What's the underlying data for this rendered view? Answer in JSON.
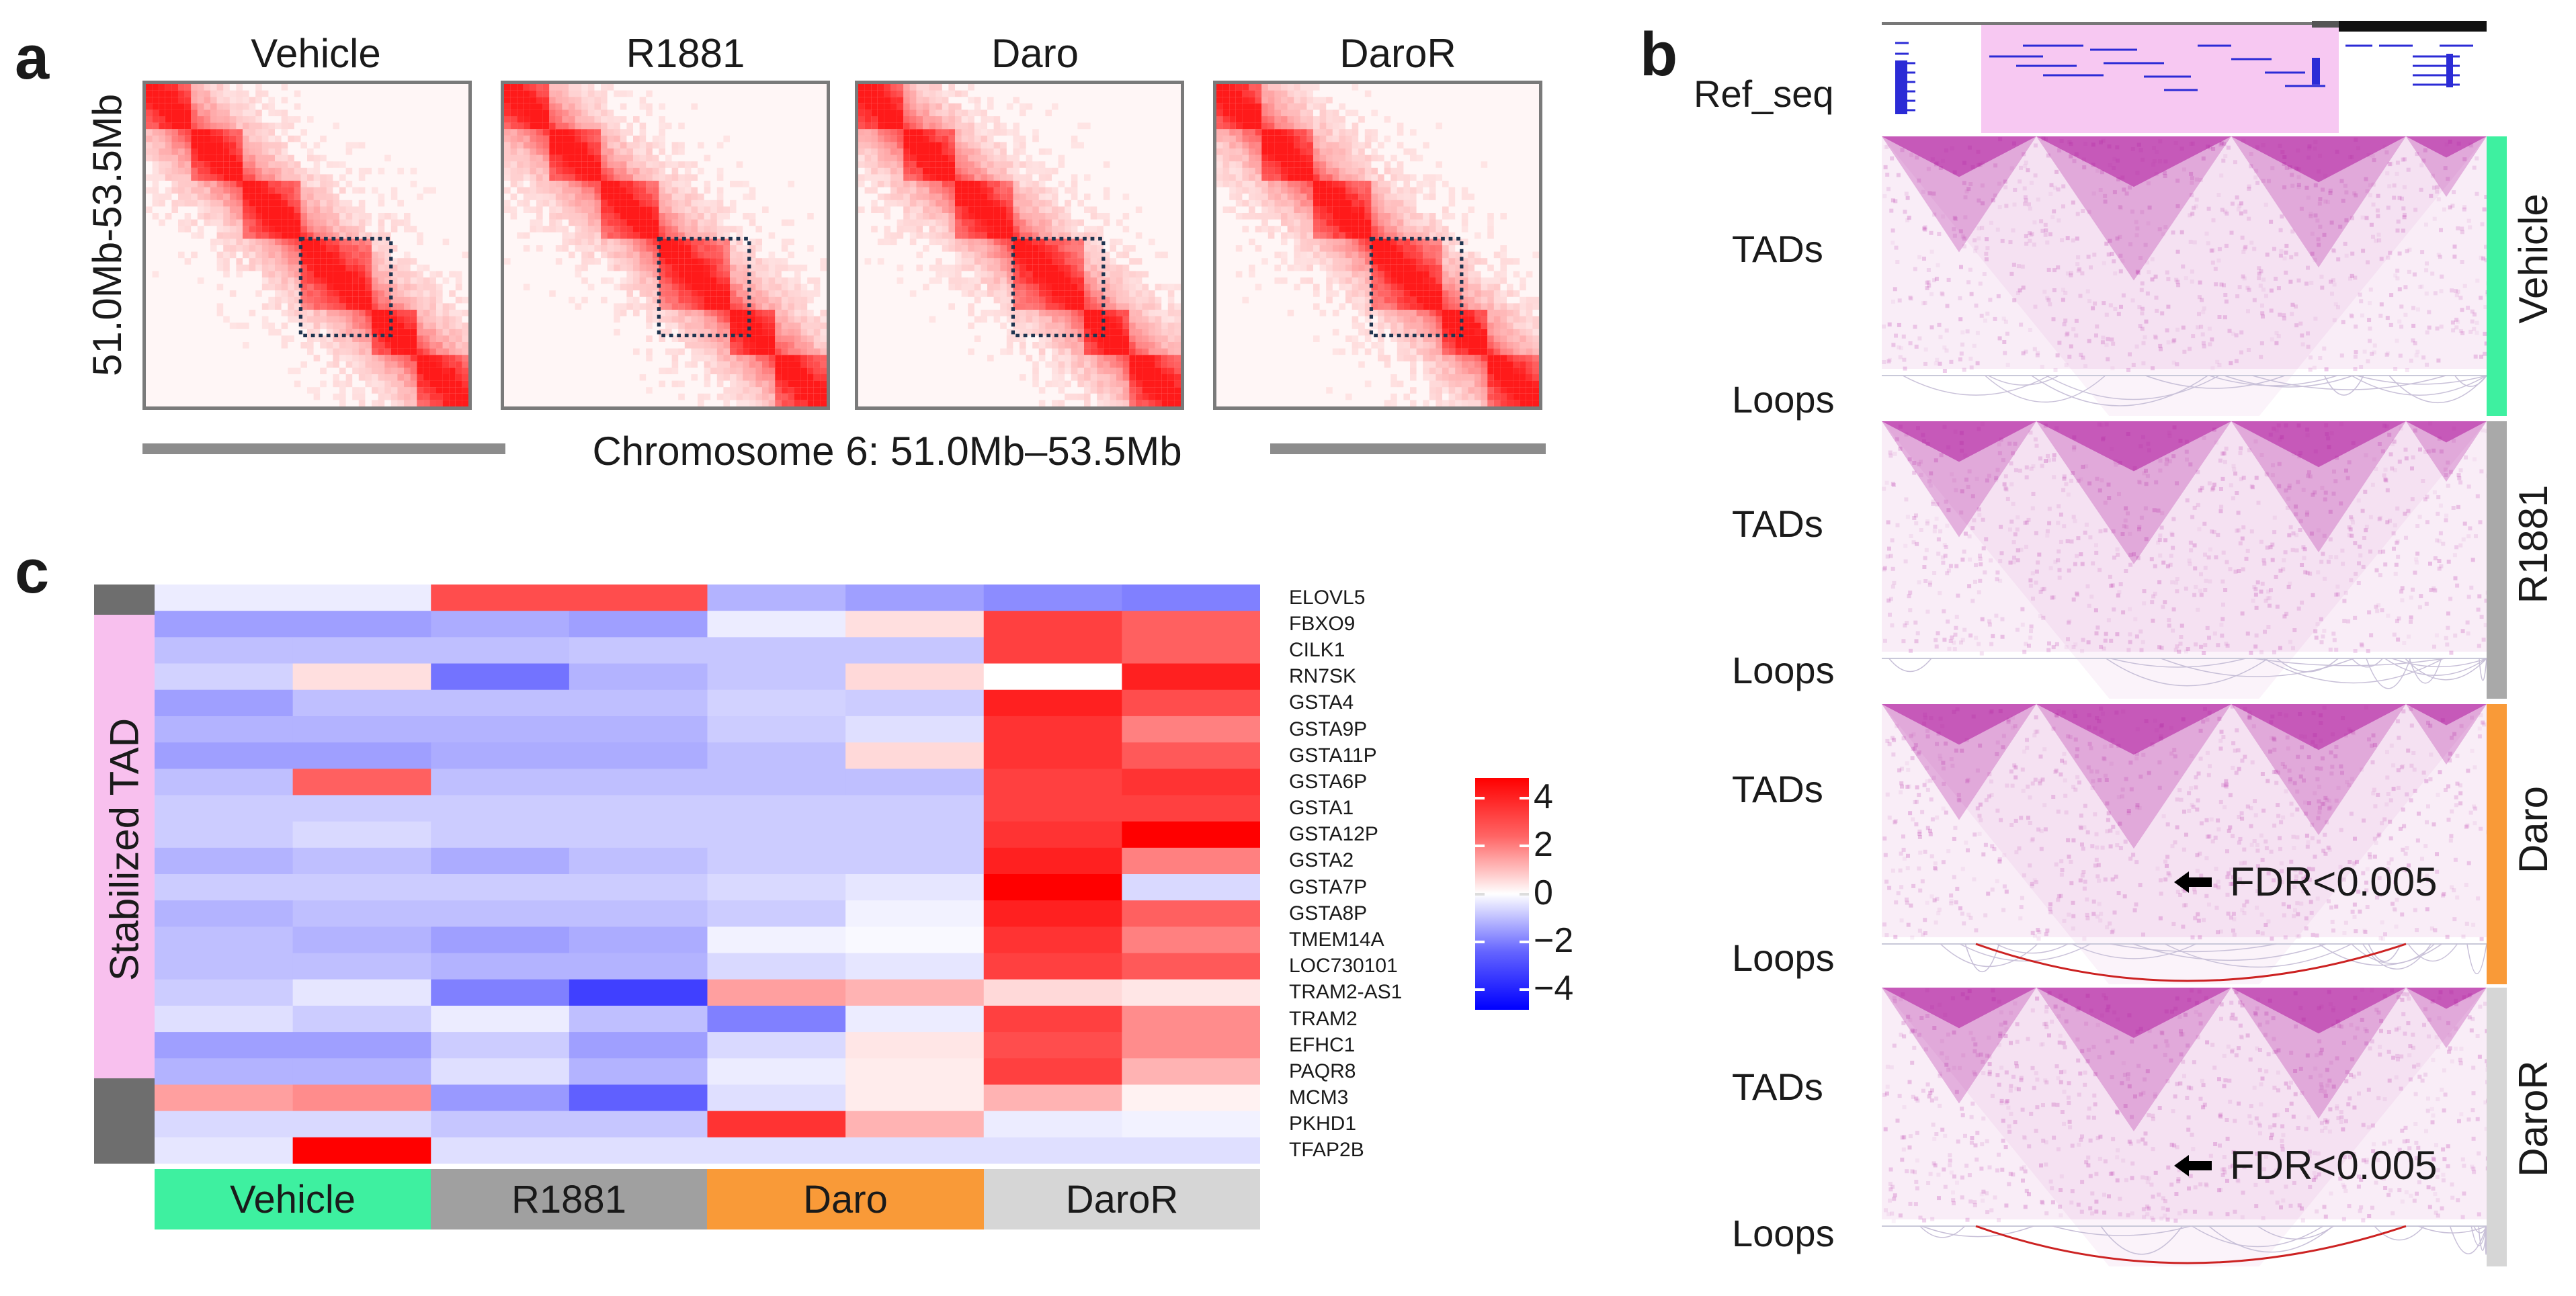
{
  "panel_a": {
    "letter": "a",
    "conditions": [
      "Vehicle",
      "R1881",
      "Daro",
      "DaroR"
    ],
    "y_axis_label": "51.0Mb-53.5Mb",
    "x_axis_label": "Chromosome 6: 51.0Mb–53.5Mb"
  },
  "panel_b": {
    "letter": "b",
    "ref_label": "Ref_seq",
    "tracks": [
      {
        "condition": "Vehicle",
        "color": "#3ef0a0",
        "tads_label": "TADs",
        "loops_label": "Loops",
        "fdr": ""
      },
      {
        "condition": "R1881",
        "color": "#a9a9a9",
        "tads_label": "TADs",
        "loops_label": "Loops",
        "fdr": ""
      },
      {
        "condition": "Daro",
        "color": "#f99a38",
        "tads_label": "TADs",
        "loops_label": "Loops",
        "fdr": "FDR<0.005"
      },
      {
        "condition": "DaroR",
        "color": "#d6d6d6",
        "tads_label": "TADs",
        "loops_label": "Loops",
        "fdr": "FDR<0.005"
      }
    ],
    "highlight_color": "#f7c8f2",
    "tad_color": "#b0179e",
    "loop_color": "#cc2222"
  },
  "panel_c": {
    "letter": "c",
    "group_label": "Stabilized TAD",
    "group_colors": {
      "outside": "#6e6e6e",
      "stabilized": "#f8c0ee"
    },
    "column_groups": [
      {
        "label": "Vehicle",
        "color": "#3ef0a0"
      },
      {
        "label": "R1881",
        "color": "#a0a0a0"
      },
      {
        "label": "Daro",
        "color": "#f99a38"
      },
      {
        "label": "DaroR",
        "color": "#d6d6d6"
      }
    ],
    "legend_ticks": [
      "4",
      "2",
      "0",
      "−2",
      "−4"
    ]
  },
  "chart_data": {
    "type": "heatmap",
    "title": "",
    "xlabel": "",
    "ylabel": "",
    "color_range": [
      -4,
      4
    ],
    "columns": [
      "Vehicle_1",
      "Vehicle_2",
      "R1881_1",
      "R1881_2",
      "Daro_1",
      "Daro_2",
      "DaroR_1",
      "DaroR_2"
    ],
    "rows": [
      {
        "gene": "ELOVL5",
        "group": "outside",
        "values": [
          -0.3,
          -0.3,
          2.8,
          2.8,
          -1.2,
          -1.5,
          -1.8,
          -2.0
        ]
      },
      {
        "gene": "FBXO9",
        "group": "stabilized",
        "values": [
          -1.5,
          -1.5,
          -1.3,
          -1.5,
          -0.3,
          0.5,
          3.0,
          2.5
        ]
      },
      {
        "gene": "CILK1",
        "group": "stabilized",
        "values": [
          -1.0,
          -1.0,
          -1.0,
          -0.9,
          -0.9,
          -0.9,
          3.0,
          2.5
        ]
      },
      {
        "gene": "RN7SK",
        "group": "stabilized",
        "values": [
          -0.7,
          0.5,
          -2.2,
          -1.2,
          -0.9,
          0.6,
          0.0,
          3.5
        ]
      },
      {
        "gene": "GSTA4",
        "group": "stabilized",
        "values": [
          -1.5,
          -1.0,
          -1.0,
          -1.0,
          -0.7,
          -0.8,
          3.5,
          2.8
        ]
      },
      {
        "gene": "GSTA9P",
        "group": "stabilized",
        "values": [
          -1.2,
          -1.2,
          -1.2,
          -1.2,
          -0.8,
          -0.5,
          3.2,
          2.0
        ]
      },
      {
        "gene": "GSTA11P",
        "group": "stabilized",
        "values": [
          -1.5,
          -1.5,
          -1.3,
          -1.3,
          -1.0,
          0.6,
          3.2,
          2.6
        ]
      },
      {
        "gene": "GSTA6P",
        "group": "stabilized",
        "values": [
          -1.0,
          2.5,
          -1.0,
          -1.0,
          -1.0,
          -1.0,
          3.0,
          3.2
        ]
      },
      {
        "gene": "GSTA1",
        "group": "stabilized",
        "values": [
          -0.8,
          -0.8,
          -0.8,
          -0.8,
          -0.8,
          -0.8,
          3.0,
          3.0
        ]
      },
      {
        "gene": "GSTA12P",
        "group": "stabilized",
        "values": [
          -0.8,
          -0.6,
          -0.8,
          -0.8,
          -0.8,
          -0.8,
          3.2,
          4.0
        ]
      },
      {
        "gene": "GSTA2",
        "group": "stabilized",
        "values": [
          -1.2,
          -1.0,
          -1.3,
          -1.0,
          -0.8,
          -0.8,
          3.5,
          2.0
        ]
      },
      {
        "gene": "GSTA7P",
        "group": "stabilized",
        "values": [
          -0.8,
          -0.8,
          -0.8,
          -0.8,
          -0.6,
          -0.4,
          4.0,
          -0.6
        ]
      },
      {
        "gene": "GSTA8P",
        "group": "stabilized",
        "values": [
          -1.2,
          -1.0,
          -1.0,
          -1.0,
          -0.8,
          -0.2,
          3.5,
          2.5
        ]
      },
      {
        "gene": "TMEM14A",
        "group": "stabilized",
        "values": [
          -1.0,
          -1.2,
          -1.5,
          -1.3,
          -0.2,
          -0.1,
          3.2,
          2.0
        ]
      },
      {
        "gene": "LOC730101",
        "group": "stabilized",
        "values": [
          -1.0,
          -1.0,
          -1.2,
          -1.2,
          -0.6,
          -0.4,
          3.0,
          2.6
        ]
      },
      {
        "gene": "TRAM2-AS1",
        "group": "stabilized",
        "values": [
          -0.8,
          -0.4,
          -2.0,
          -3.0,
          1.5,
          1.2,
          0.6,
          0.4
        ]
      },
      {
        "gene": "TRAM2",
        "group": "stabilized",
        "values": [
          -0.5,
          -0.8,
          -0.3,
          -1.0,
          -2.0,
          -0.3,
          3.0,
          1.8
        ]
      },
      {
        "gene": "EFHC1",
        "group": "stabilized",
        "values": [
          -1.5,
          -1.5,
          -0.8,
          -1.5,
          -0.6,
          0.4,
          2.8,
          1.8
        ]
      },
      {
        "gene": "PAQR8",
        "group": "stabilized",
        "values": [
          -1.2,
          -1.2,
          -0.5,
          -1.2,
          -0.3,
          0.3,
          3.0,
          1.2
        ]
      },
      {
        "gene": "MCM3",
        "group": "outside",
        "values": [
          1.5,
          1.8,
          -1.6,
          -2.5,
          -0.5,
          0.3,
          1.2,
          0.2
        ]
      },
      {
        "gene": "PKHD1",
        "group": "outside",
        "values": [
          -0.6,
          -0.6,
          -0.9,
          -0.9,
          3.2,
          1.2,
          -0.3,
          -0.2
        ]
      },
      {
        "gene": "TFAP2B",
        "group": "outside",
        "values": [
          -0.4,
          4.0,
          -0.5,
          -0.5,
          -0.5,
          -0.5,
          -0.5,
          -0.5
        ]
      }
    ]
  }
}
